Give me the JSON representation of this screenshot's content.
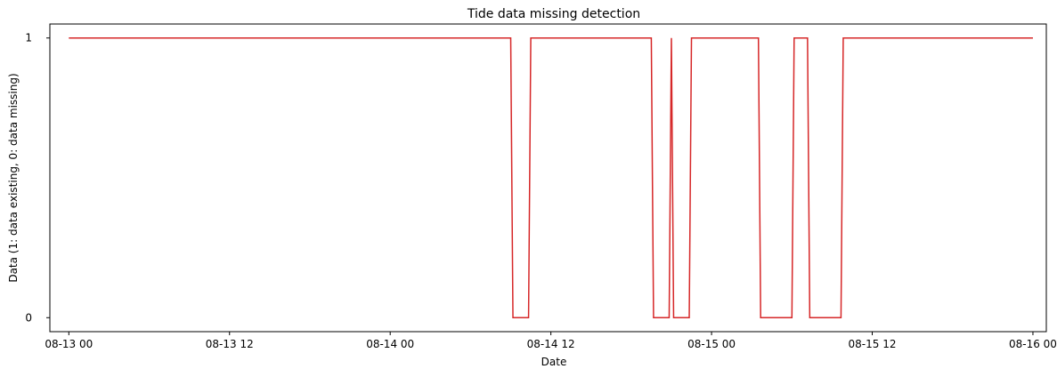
{
  "chart_data": {
    "type": "line",
    "title": "Tide data missing detection",
    "xlabel": "Date",
    "ylabel": "Data (1: data existing, 0: data missing)",
    "x_ticks": [
      "08-13 00",
      "08-13 12",
      "08-14 00",
      "08-14 12",
      "08-15 00",
      "08-15 12",
      "08-16 00"
    ],
    "y_ticks": [
      "0",
      "1"
    ],
    "xlim": [
      "08-12 22:35",
      "08-16 01:00"
    ],
    "ylim": [
      -0.05,
      1.05
    ],
    "grid": false,
    "series": [
      {
        "color": "#d62728",
        "points": [
          {
            "x": "08-13 00:00",
            "y": 1
          },
          {
            "x": "08-14 09:00",
            "y": 1
          },
          {
            "x": "08-14 09:10",
            "y": 0
          },
          {
            "x": "08-14 10:20",
            "y": 0
          },
          {
            "x": "08-14 10:30",
            "y": 1
          },
          {
            "x": "08-14 19:30",
            "y": 1
          },
          {
            "x": "08-14 19:40",
            "y": 0
          },
          {
            "x": "08-14 20:50",
            "y": 0
          },
          {
            "x": "08-14 21:00",
            "y": 1
          },
          {
            "x": "08-14 21:10",
            "y": 0
          },
          {
            "x": "08-14 22:20",
            "y": 0
          },
          {
            "x": "08-14 22:30",
            "y": 1
          },
          {
            "x": "08-15 03:30",
            "y": 1
          },
          {
            "x": "08-15 03:40",
            "y": 0
          },
          {
            "x": "08-15 06:00",
            "y": 0
          },
          {
            "x": "08-15 06:10",
            "y": 1
          },
          {
            "x": "08-15 07:10",
            "y": 1
          },
          {
            "x": "08-15 07:20",
            "y": 0
          },
          {
            "x": "08-15 09:40",
            "y": 0
          },
          {
            "x": "08-15 09:50",
            "y": 1
          },
          {
            "x": "08-16 00:00",
            "y": 1
          }
        ]
      }
    ]
  }
}
